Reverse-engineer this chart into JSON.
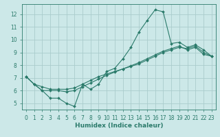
{
  "title": "",
  "xlabel": "Humidex (Indice chaleur)",
  "xlim": [
    -0.5,
    23.5
  ],
  "ylim": [
    4.5,
    12.8
  ],
  "xticks": [
    0,
    1,
    2,
    3,
    4,
    5,
    6,
    7,
    8,
    9,
    10,
    11,
    12,
    13,
    14,
    15,
    16,
    17,
    18,
    19,
    20,
    21,
    22,
    23
  ],
  "yticks": [
    5,
    6,
    7,
    8,
    9,
    10,
    11,
    12
  ],
  "background_color": "#cce8e8",
  "grid_color": "#aacccc",
  "line_color": "#2a7a6a",
  "line1_x": [
    0,
    1,
    2,
    3,
    4,
    5,
    6,
    7,
    8,
    9,
    10,
    11,
    12,
    13,
    14,
    15,
    16,
    17,
    18,
    19,
    20,
    21,
    22,
    23
  ],
  "line1_y": [
    7.1,
    6.5,
    6.0,
    5.4,
    5.4,
    5.0,
    4.75,
    6.5,
    6.1,
    6.5,
    7.5,
    7.75,
    8.5,
    9.4,
    10.6,
    11.5,
    12.35,
    12.2,
    9.7,
    9.8,
    9.4,
    9.6,
    9.2,
    8.7
  ],
  "line2_x": [
    0,
    1,
    2,
    3,
    4,
    5,
    6,
    7,
    8,
    9,
    10,
    11,
    12,
    13,
    14,
    15,
    16,
    17,
    18,
    19,
    20,
    21,
    22,
    23
  ],
  "line2_y": [
    7.1,
    6.5,
    6.3,
    6.1,
    6.1,
    6.1,
    6.2,
    6.5,
    6.8,
    7.1,
    7.3,
    7.5,
    7.7,
    7.9,
    8.1,
    8.4,
    8.7,
    9.0,
    9.2,
    9.4,
    9.3,
    9.5,
    9.0,
    8.7
  ],
  "line3_x": [
    0,
    1,
    2,
    3,
    4,
    5,
    6,
    7,
    8,
    9,
    10,
    11,
    12,
    13,
    14,
    15,
    16,
    17,
    18,
    19,
    20,
    21,
    22,
    23
  ],
  "line3_y": [
    7.1,
    6.5,
    6.0,
    6.0,
    6.0,
    5.9,
    6.0,
    6.3,
    6.6,
    6.9,
    7.2,
    7.45,
    7.7,
    7.95,
    8.2,
    8.5,
    8.8,
    9.1,
    9.3,
    9.5,
    9.2,
    9.4,
    8.85,
    8.7
  ],
  "tick_fontsize": 5.5,
  "xlabel_fontsize": 6.5,
  "marker_size": 2.0,
  "line_width": 0.8
}
